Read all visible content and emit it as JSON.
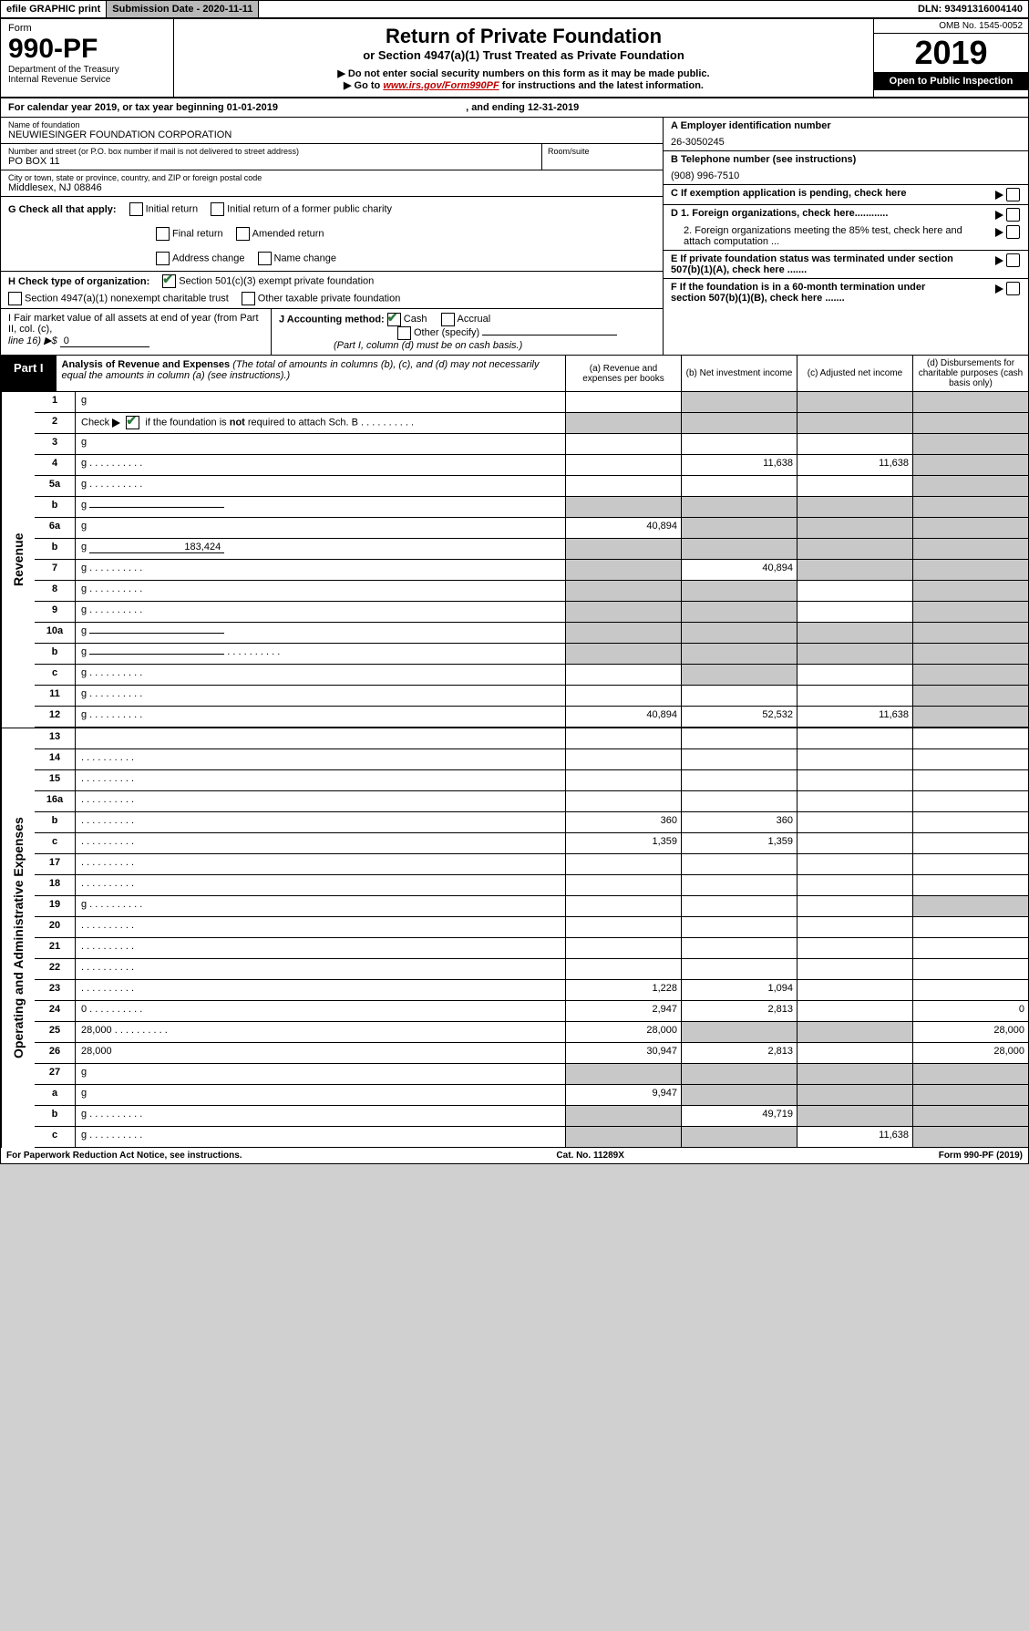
{
  "top": {
    "efile": "efile GRAPHIC print",
    "sub_date_label": "Submission Date - 2020-11-11",
    "dln": "DLN: 93491316004140"
  },
  "header": {
    "form_label": "Form",
    "form_no": "990-PF",
    "dept": "Department of the Treasury",
    "irs": "Internal Revenue Service",
    "title": "Return of Private Foundation",
    "subtitle": "or Section 4947(a)(1) Trust Treated as Private Foundation",
    "instr1": "▶ Do not enter social security numbers on this form as it may be made public.",
    "instr2_pre": "▶ Go to",
    "instr2_link": "www.irs.gov/Form990PF",
    "instr2_post": "for instructions and the latest information.",
    "omb": "OMB No. 1545-0052",
    "year": "2019",
    "open": "Open to Public Inspection"
  },
  "cal": {
    "text_pre": "For calendar year 2019, or tax year beginning",
    "begin": "01-01-2019",
    "mid": ", and ending",
    "end": "12-31-2019"
  },
  "info": {
    "name_lbl": "Name of foundation",
    "name": "NEUWIESINGER FOUNDATION CORPORATION",
    "addr_lbl": "Number and street (or P.O. box number if mail is not delivered to street address)",
    "room_lbl": "Room/suite",
    "addr": "PO BOX 11",
    "city_lbl": "City or town, state or province, country, and ZIP or foreign postal code",
    "city": "Middlesex, NJ  08846",
    "einA_lbl": "A Employer identification number",
    "ein": "26-3050245",
    "telB_lbl": "B Telephone number (see instructions)",
    "tel": "(908) 996-7510",
    "C_lbl": "C If exemption application is pending, check here",
    "D1_lbl": "D 1. Foreign organizations, check here............",
    "D2_lbl": "2. Foreign organizations meeting the 85% test, check here and attach computation ...",
    "E_lbl": "E If private foundation status was terminated under section 507(b)(1)(A), check here .......",
    "F_lbl": "F If the foundation is in a 60-month termination under section 507(b)(1)(B), check here ......."
  },
  "checksG": {
    "lbl": "G Check all that apply:",
    "items": [
      "Initial return",
      "Initial return of a former public charity",
      "Final return",
      "Amended return",
      "Address change",
      "Name change"
    ]
  },
  "checksH": {
    "lbl": "H Check type of organization:",
    "item1": "Section 501(c)(3) exempt private foundation",
    "item2": "Section 4947(a)(1) nonexempt charitable trust",
    "item3": "Other taxable private foundation"
  },
  "sectionI": {
    "lbl_pre": "I Fair market value of all assets at end of year (from Part II, col. (c),",
    "lbl_line": "line 16) ▶$",
    "val": "0"
  },
  "sectionJ": {
    "lbl": "J Accounting method:",
    "cash": "Cash",
    "accrual": "Accrual",
    "other": "Other (specify)",
    "note": "(Part I, column (d) must be on cash basis.)"
  },
  "part1": {
    "tab": "Part I",
    "title": "Analysis of Revenue and Expenses",
    "note": "(The total of amounts in columns (b), (c), and (d) may not necessarily equal the amounts in column (a) (see instructions).)",
    "col_a": "(a) Revenue and expenses per books",
    "col_b": "(b) Net investment income",
    "col_c": "(c) Adjusted net income",
    "col_d": "(d) Disbursements for charitable purposes (cash basis only)"
  },
  "side": {
    "rev": "Revenue",
    "exp": "Operating and Administrative Expenses"
  },
  "rows": [
    {
      "n": "1",
      "d": "g",
      "a": "",
      "b": "g",
      "c": "g"
    },
    {
      "n": "2",
      "d": "g",
      "dots": true,
      "a": "g",
      "b": "g",
      "c": "g",
      "checked": true
    },
    {
      "n": "3",
      "d": "g",
      "a": "",
      "b": "",
      "c": ""
    },
    {
      "n": "4",
      "d": "g",
      "dots": true,
      "a": "",
      "b": "11,638",
      "c": "11,638"
    },
    {
      "n": "5a",
      "d": "g",
      "dots": true,
      "a": "",
      "b": "",
      "c": ""
    },
    {
      "n": "b",
      "d": "g",
      "uline": true,
      "a": "g",
      "b": "g",
      "c": "g"
    },
    {
      "n": "6a",
      "d": "g",
      "a": "40,894",
      "b": "g",
      "c": "g"
    },
    {
      "n": "b",
      "d": "g",
      "uline": true,
      "uval": "183,424",
      "a": "g",
      "b": "g",
      "c": "g"
    },
    {
      "n": "7",
      "d": "g",
      "dots": true,
      "a": "g",
      "b": "40,894",
      "c": "g"
    },
    {
      "n": "8",
      "d": "g",
      "dots": true,
      "a": "g",
      "b": "g",
      "c": ""
    },
    {
      "n": "9",
      "d": "g",
      "dots": true,
      "a": "g",
      "b": "g",
      "c": ""
    },
    {
      "n": "10a",
      "d": "g",
      "uline": true,
      "a": "g",
      "b": "g",
      "c": "g"
    },
    {
      "n": "b",
      "d": "g",
      "dots": true,
      "uline": true,
      "a": "g",
      "b": "g",
      "c": "g"
    },
    {
      "n": "c",
      "d": "g",
      "dots": true,
      "a": "",
      "b": "g",
      "c": ""
    },
    {
      "n": "11",
      "d": "g",
      "dots": true,
      "a": "",
      "b": "",
      "c": ""
    },
    {
      "n": "12",
      "d": "g",
      "dots": true,
      "a": "40,894",
      "b": "52,532",
      "c": "11,638"
    }
  ],
  "rows2": [
    {
      "n": "13",
      "d": "",
      "a": "",
      "b": "",
      "c": ""
    },
    {
      "n": "14",
      "d": "",
      "dots": true,
      "a": "",
      "b": "",
      "c": ""
    },
    {
      "n": "15",
      "d": "",
      "dots": true,
      "a": "",
      "b": "",
      "c": ""
    },
    {
      "n": "16a",
      "d": "",
      "dots": true,
      "a": "",
      "b": "",
      "c": ""
    },
    {
      "n": "b",
      "d": "",
      "dots": true,
      "a": "360",
      "b": "360",
      "c": ""
    },
    {
      "n": "c",
      "d": "",
      "dots": true,
      "a": "1,359",
      "b": "1,359",
      "c": ""
    },
    {
      "n": "17",
      "d": "",
      "dots": true,
      "a": "",
      "b": "",
      "c": ""
    },
    {
      "n": "18",
      "d": "",
      "dots": true,
      "a": "",
      "b": "",
      "c": ""
    },
    {
      "n": "19",
      "d": "g",
      "dots": true,
      "a": "",
      "b": "",
      "c": ""
    },
    {
      "n": "20",
      "d": "",
      "dots": true,
      "a": "",
      "b": "",
      "c": ""
    },
    {
      "n": "21",
      "d": "",
      "dots": true,
      "a": "",
      "b": "",
      "c": ""
    },
    {
      "n": "22",
      "d": "",
      "dots": true,
      "a": "",
      "b": "",
      "c": ""
    },
    {
      "n": "23",
      "d": "",
      "dots": true,
      "a": "1,228",
      "b": "1,094",
      "c": ""
    },
    {
      "n": "24",
      "d": "0",
      "dots": true,
      "a": "2,947",
      "b": "2,813",
      "c": ""
    },
    {
      "n": "25",
      "d": "28,000",
      "dots": true,
      "a": "28,000",
      "b": "g",
      "c": "g"
    },
    {
      "n": "26",
      "d": "28,000",
      "a": "30,947",
      "b": "2,813",
      "c": ""
    },
    {
      "n": "27",
      "d": "g",
      "a": "g",
      "b": "g",
      "c": "g"
    },
    {
      "n": "a",
      "d": "g",
      "a": "9,947",
      "b": "g",
      "c": "g"
    },
    {
      "n": "b",
      "d": "g",
      "dots": true,
      "a": "g",
      "b": "49,719",
      "c": "g"
    },
    {
      "n": "c",
      "d": "g",
      "dots": true,
      "a": "g",
      "b": "g",
      "c": "11,638"
    }
  ],
  "footer": {
    "left": "For Paperwork Reduction Act Notice, see instructions.",
    "mid": "Cat. No. 11289X",
    "right": "Form 990-PF (2019)"
  },
  "widths": {
    "val_col": "118px"
  }
}
